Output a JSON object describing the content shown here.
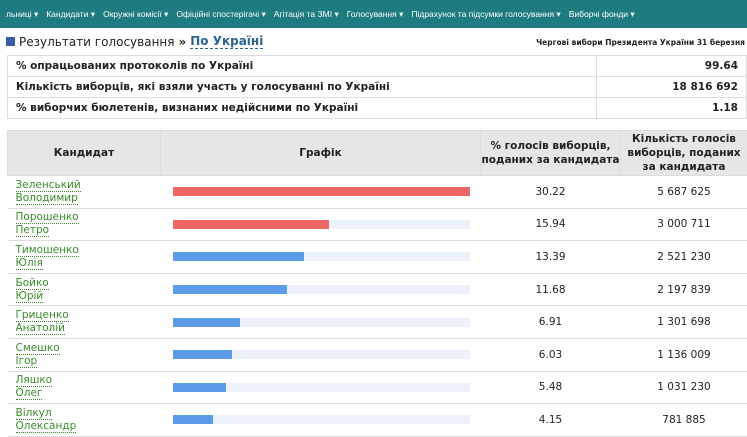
{
  "nav": {
    "items": [
      "льниці ▾",
      "Кандидати ▾",
      "Окружні комісії ▾",
      "Офіційні спостерігачі ▾",
      "Агітація та ЗМІ ▾",
      "Голосування ▾",
      "Підрахунок та підсумки голосування ▾",
      "Виборчі фонди ▾"
    ]
  },
  "breadcrumb": {
    "parent": "Результати голосування",
    "separator": "»",
    "current": "По Україні"
  },
  "election": "Чергові вибори Президента України 31 березня",
  "summary": [
    {
      "label": "% опрацьованих протоколів по Україні",
      "value": "99.64"
    },
    {
      "label": "Кількість виборців, які взяли участь у голосуванні по Україні",
      "value": "18 816 692"
    },
    {
      "label": "% виборчих бюлетенів, визнаних недійсними по Україні",
      "value": "1.18"
    }
  ],
  "table": {
    "headers": {
      "candidate": "Кандидат",
      "chart": "Графік",
      "pct": "% голосів виборців, поданих за кандидата",
      "count": "Кількість голосів виборців, поданих за кандидата"
    },
    "colors": {
      "leader": "#ee6666",
      "other": "#5b9be8",
      "track": "#edf2fa"
    },
    "max_pct": 30.22,
    "rows": [
      {
        "surname": "Зеленський",
        "name": "Володимир",
        "pct": 30.22,
        "pct_text": "30.22",
        "count": "5 687 625",
        "color": "#ee6666"
      },
      {
        "surname": "Порошенко",
        "name": "Петро",
        "pct": 15.94,
        "pct_text": "15.94",
        "count": "3 000 711",
        "color": "#ee6666"
      },
      {
        "surname": "Тимошенко",
        "name": "Юлія",
        "pct": 13.39,
        "pct_text": "13.39",
        "count": "2 521 230",
        "color": "#5b9be8"
      },
      {
        "surname": "Бойко",
        "name": "Юрій",
        "pct": 11.68,
        "pct_text": "11.68",
        "count": "2 197 839",
        "color": "#5b9be8"
      },
      {
        "surname": "Гриценко",
        "name": "Анатолій",
        "pct": 6.91,
        "pct_text": "6.91",
        "count": "1 301 698",
        "color": "#5b9be8"
      },
      {
        "surname": "Смешко",
        "name": "Ігор",
        "pct": 6.03,
        "pct_text": "6.03",
        "count": "1 136 009",
        "color": "#5b9be8"
      },
      {
        "surname": "Ляшко",
        "name": "Олег",
        "pct": 5.48,
        "pct_text": "5.48",
        "count": "1 031 230",
        "color": "#5b9be8"
      },
      {
        "surname": "Вілкул",
        "name": "Олександр",
        "pct": 4.15,
        "pct_text": "4.15",
        "count": "781 885",
        "color": "#5b9be8"
      }
    ]
  }
}
